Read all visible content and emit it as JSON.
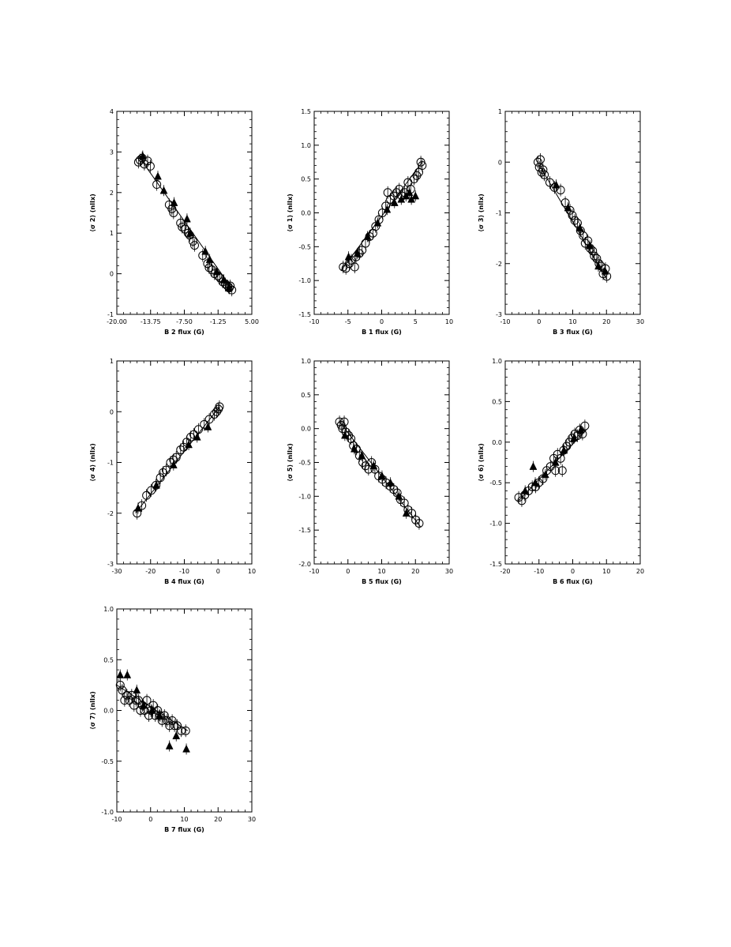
{
  "chart_data": [
    {
      "type": "scatter",
      "xlabel": "B 2 flux (G)",
      "ylabel": "⟨σ 2⟩ (nlIx)",
      "xlim": [
        -20.0,
        5.0
      ],
      "ylim": [
        -1,
        4
      ],
      "xticks": [
        -20.0,
        -13.75,
        -7.5,
        -1.25,
        5.0
      ],
      "xtick_labels": [
        "-20.00",
        "-13.75",
        "-7.50",
        "-1.25",
        "5.00"
      ],
      "yticks": [
        -1,
        0,
        1,
        2,
        3,
        4
      ],
      "ytick_labels": [
        "-1",
        "0",
        "1",
        "2",
        "3",
        "4"
      ],
      "fit_line": {
        "x": [
          -16.0,
          1.5
        ],
        "y": [
          2.9,
          -0.4
        ]
      },
      "series": [
        {
          "marker": "circle",
          "x": [
            -16,
            -15.7,
            -15.3,
            -14.9,
            -14.3,
            -13.8,
            -12.6,
            -10.3,
            -9.8,
            -9.5,
            -8.2,
            -7.9,
            -7.4,
            -6.8,
            -6.5,
            -5.9,
            -5.6,
            -4.1,
            -3.2,
            -2.9,
            -2.4,
            -1.9,
            -1.3,
            -0.9,
            -0.4,
            0.1,
            0.5,
            0.8,
            1.0,
            1.3
          ],
          "y": [
            2.75,
            2.8,
            2.85,
            2.7,
            2.78,
            2.65,
            2.2,
            1.7,
            1.6,
            1.5,
            1.25,
            1.15,
            1.1,
            1.0,
            0.95,
            0.8,
            0.7,
            0.45,
            0.25,
            0.15,
            0.1,
            0.0,
            -0.05,
            -0.1,
            -0.2,
            -0.25,
            -0.3,
            -0.35,
            -0.3,
            -0.4
          ]
        },
        {
          "marker": "triangle",
          "x": [
            -15.2,
            -12.4,
            -11.3,
            -9.4,
            -7.0,
            -6.4,
            -3.6,
            -2.8,
            -1.5,
            -0.2,
            0.7
          ],
          "y": [
            2.9,
            2.4,
            2.05,
            1.75,
            1.35,
            1.0,
            0.55,
            0.35,
            0.05,
            -0.15,
            -0.35
          ]
        }
      ]
    },
    {
      "type": "scatter",
      "xlabel": "B 1 flux (G)",
      "ylabel": "⟨σ 1⟩ (nlIx)",
      "xlim": [
        -10,
        10
      ],
      "ylim": [
        -1.5,
        1.5
      ],
      "xticks": [
        -10,
        -5,
        0,
        5,
        10
      ],
      "xtick_labels": [
        "-10",
        "-5",
        "0",
        "5",
        "10"
      ],
      "yticks": [
        -1.5,
        -1.0,
        -0.5,
        0.0,
        0.5,
        1.0,
        1.5
      ],
      "ytick_labels": [
        "-1.5",
        "-1.0",
        "-0.5",
        "0.0",
        "0.5",
        "1.0",
        "1.5"
      ],
      "fit_line": {
        "x": [
          -6.0,
          6.0
        ],
        "y": [
          -0.85,
          0.75
        ]
      },
      "series": [
        {
          "marker": "circle",
          "x": [
            -5.7,
            -5.3,
            -4.8,
            -4.5,
            -4.0,
            -3.8,
            -3.3,
            -2.9,
            -2.4,
            -1.8,
            -1.3,
            -0.9,
            -0.4,
            0.1,
            0.6,
            0.9,
            1.3,
            1.8,
            2.2,
            2.6,
            3.0,
            3.4,
            3.9,
            4.3,
            4.8,
            5.2,
            5.5,
            5.8,
            6.0
          ],
          "y": [
            -0.8,
            -0.82,
            -0.75,
            -0.7,
            -0.8,
            -0.65,
            -0.6,
            -0.55,
            -0.45,
            -0.35,
            -0.3,
            -0.2,
            -0.1,
            0.0,
            0.1,
            0.3,
            0.2,
            0.25,
            0.3,
            0.35,
            0.25,
            0.3,
            0.45,
            0.35,
            0.5,
            0.55,
            0.6,
            0.75,
            0.7
          ]
        },
        {
          "marker": "triangle",
          "x": [
            -4.9,
            -3.6,
            -2.1,
            -0.6,
            0.8,
            1.9,
            2.9,
            3.6,
            4.4,
            5.0,
            4.1
          ],
          "y": [
            -0.65,
            -0.6,
            -0.35,
            -0.15,
            0.05,
            0.15,
            0.2,
            0.25,
            0.2,
            0.25,
            0.3
          ]
        }
      ]
    },
    {
      "type": "scatter",
      "xlabel": "B 3 flux (G)",
      "ylabel": "⟨σ 3⟩ (nlIx)",
      "xlim": [
        -10,
        30
      ],
      "ylim": [
        -3,
        1
      ],
      "xticks": [
        -10,
        0,
        10,
        20,
        30
      ],
      "xtick_labels": [
        "-10",
        "0",
        "10",
        "20",
        "30"
      ],
      "yticks": [
        -3,
        -2,
        -1,
        0,
        1
      ],
      "ytick_labels": [
        "-3",
        "-2",
        "-1",
        "0",
        "1"
      ],
      "fit_line": {
        "x": [
          0.0,
          20.0
        ],
        "y": [
          -0.05,
          -2.3
        ]
      },
      "series": [
        {
          "marker": "circle",
          "x": [
            -0.3,
            0.1,
            0.4,
            0.8,
            1.2,
            1.6,
            3.2,
            4.6,
            6.4,
            7.8,
            9.2,
            9.9,
            10.6,
            11.4,
            12.3,
            13.1,
            13.7,
            14.5,
            15.2,
            15.9,
            16.4,
            17.1,
            17.8,
            18.4,
            19.0,
            19.7,
            20.1
          ],
          "y": [
            0.0,
            -0.1,
            0.05,
            -0.2,
            -0.15,
            -0.25,
            -0.4,
            -0.5,
            -0.55,
            -0.8,
            -0.95,
            -1.05,
            -1.15,
            -1.2,
            -1.35,
            -1.45,
            -1.6,
            -1.55,
            -1.7,
            -1.75,
            -1.85,
            -1.9,
            -2.0,
            -2.05,
            -2.2,
            -2.1,
            -2.25
          ]
        },
        {
          "marker": "triangle",
          "x": [
            5.1,
            8.6,
            12.1,
            15.1,
            17.6,
            19.6
          ],
          "y": [
            -0.45,
            -0.9,
            -1.3,
            -1.65,
            -2.05,
            -2.15
          ]
        }
      ]
    },
    {
      "type": "scatter",
      "xlabel": "B 4 flux (G)",
      "ylabel": "⟨σ 4⟩ (nlIx)",
      "xlim": [
        -30,
        10
      ],
      "ylim": [
        -3,
        1
      ],
      "xticks": [
        -30,
        -20,
        -10,
        0,
        10
      ],
      "xtick_labels": [
        "-30",
        "-20",
        "-10",
        "0",
        "10"
      ],
      "yticks": [
        -3,
        -2,
        -1,
        0,
        1
      ],
      "ytick_labels": [
        "-3",
        "-2",
        "-1",
        "0",
        "1"
      ],
      "fit_line": {
        "x": [
          -24.5,
          0.5
        ],
        "y": [
          -2.0,
          0.1
        ]
      },
      "series": [
        {
          "marker": "circle",
          "x": [
            -24.0,
            -22.6,
            -21.2,
            -19.8,
            -18.4,
            -17.1,
            -16.3,
            -15.4,
            -14.1,
            -13.2,
            -12.4,
            -11.1,
            -10.2,
            -9.3,
            -8.1,
            -7.2,
            -5.8,
            -4.1,
            -2.6,
            -1.1,
            -0.4,
            0.1,
            0.4
          ],
          "y": [
            -2.0,
            -1.85,
            -1.65,
            -1.55,
            -1.45,
            -1.3,
            -1.2,
            -1.15,
            -1.0,
            -0.95,
            -0.9,
            -0.75,
            -0.7,
            -0.6,
            -0.5,
            -0.45,
            -0.35,
            -0.25,
            -0.15,
            -0.05,
            0.0,
            0.05,
            0.1
          ]
        },
        {
          "marker": "triangle",
          "x": [
            -23.7,
            -18.3,
            -13.2,
            -8.7,
            -6.2,
            -3.0
          ],
          "y": [
            -1.9,
            -1.45,
            -1.05,
            -0.65,
            -0.5,
            -0.3
          ]
        }
      ]
    },
    {
      "type": "scatter",
      "xlabel": "B 5 flux (G)",
      "ylabel": "⟨σ 5⟩ (nlIx)",
      "xlim": [
        -10,
        30
      ],
      "ylim": [
        -2.0,
        1.0
      ],
      "xticks": [
        -10,
        0,
        10,
        20,
        30
      ],
      "xtick_labels": [
        "-10",
        "0",
        "10",
        "20",
        "30"
      ],
      "yticks": [
        -2.0,
        -1.5,
        -1.0,
        -0.5,
        0.0,
        0.5,
        1.0
      ],
      "ytick_labels": [
        "-2.0",
        "-1.5",
        "-1.0",
        "-0.5",
        "0.0",
        "0.5",
        "1.0"
      ],
      "fit_line": {
        "x": [
          -2.5,
          21.5
        ],
        "y": [
          0.1,
          -1.45
        ]
      },
      "series": [
        {
          "marker": "circle",
          "x": [
            -2.5,
            -2.0,
            -1.6,
            -1.1,
            -0.6,
            0.2,
            0.9,
            1.6,
            2.5,
            3.4,
            4.4,
            5.2,
            6.1,
            7.0,
            8.0,
            9.1,
            10.2,
            11.3,
            12.5,
            13.6,
            14.6,
            15.6,
            16.7,
            17.8,
            18.9,
            20.1,
            21.1
          ],
          "y": [
            0.1,
            0.05,
            0.0,
            0.1,
            -0.05,
            -0.1,
            -0.15,
            -0.25,
            -0.3,
            -0.4,
            -0.5,
            -0.55,
            -0.6,
            -0.5,
            -0.6,
            -0.7,
            -0.75,
            -0.8,
            -0.85,
            -0.9,
            -0.95,
            -1.05,
            -1.1,
            -1.2,
            -1.25,
            -1.35,
            -1.4
          ]
        },
        {
          "marker": "triangle",
          "x": [
            -0.9,
            1.9,
            4.1,
            7.6,
            10.1,
            12.6,
            15.1,
            17.3
          ],
          "y": [
            -0.1,
            -0.3,
            -0.4,
            -0.55,
            -0.7,
            -0.8,
            -1.0,
            -1.25
          ]
        }
      ]
    },
    {
      "type": "scatter",
      "xlabel": "B 6 flux (G)",
      "ylabel": "⟨σ 6⟩ (nlIx)",
      "xlim": [
        -20,
        20
      ],
      "ylim": [
        -1.5,
        1.0
      ],
      "xticks": [
        -20,
        -10,
        0,
        10,
        20
      ],
      "xtick_labels": [
        "-20",
        "-10",
        "0",
        "10",
        "20"
      ],
      "yticks": [
        -1.5,
        -1.0,
        -0.5,
        0.0,
        0.5,
        1.0
      ],
      "ytick_labels": [
        "-1.5",
        "-1.0",
        "-0.5",
        "0.0",
        "0.5",
        "1.0"
      ],
      "fit_line": {
        "x": [
          -16.0,
          4.0
        ],
        "y": [
          -0.72,
          0.15
        ]
      },
      "series": [
        {
          "marker": "circle",
          "x": [
            -16.0,
            -15.1,
            -14.2,
            -13.1,
            -12.0,
            -11.0,
            -10.1,
            -8.8,
            -7.7,
            -6.6,
            -5.6,
            -4.5,
            -3.6,
            -2.7,
            -1.8,
            -1.0,
            -0.2,
            0.6,
            1.4,
            2.1,
            2.9,
            3.6,
            -3.1,
            -5.1
          ],
          "y": [
            -0.68,
            -0.72,
            -0.65,
            -0.6,
            -0.55,
            -0.55,
            -0.5,
            -0.45,
            -0.35,
            -0.3,
            -0.2,
            -0.15,
            -0.2,
            -0.1,
            -0.05,
            0.0,
            0.05,
            0.1,
            0.08,
            0.15,
            0.1,
            0.2,
            -0.35,
            -0.35
          ]
        },
        {
          "marker": "triangle",
          "x": [
            -14.1,
            -11.1,
            -8.1,
            -11.7,
            -5.1,
            -2.6,
            0.4,
            2.4
          ],
          "y": [
            -0.6,
            -0.5,
            -0.4,
            -0.3,
            -0.25,
            -0.1,
            0.05,
            0.15
          ]
        }
      ]
    },
    {
      "type": "scatter",
      "xlabel": "B 7 flux (G)",
      "ylabel": "⟨σ 7⟩ (nlIx)",
      "xlim": [
        -10,
        30
      ],
      "ylim": [
        -1.0,
        1.0
      ],
      "xticks": [
        -10,
        0,
        10,
        20,
        30
      ],
      "xtick_labels": [
        "-10",
        "0",
        "10",
        "20",
        "30"
      ],
      "yticks": [
        -1.0,
        -0.5,
        0.0,
        0.5,
        1.0
      ],
      "ytick_labels": [
        "-1.0",
        "-0.5",
        "0.0",
        "0.5",
        "1.0"
      ],
      "fit_line": {
        "x": [
          -10.0,
          11.0
        ],
        "y": [
          0.25,
          -0.2
        ]
      },
      "series": [
        {
          "marker": "circle",
          "x": [
            -9.0,
            -8.4,
            -7.7,
            -7.0,
            -6.3,
            -5.6,
            -4.9,
            -4.3,
            -3.6,
            -3.0,
            -2.4,
            -1.8,
            -1.1,
            -0.5,
            0.1,
            0.8,
            1.4,
            2.1,
            2.8,
            3.4,
            4.1,
            4.9,
            5.6,
            6.4,
            7.1,
            7.9,
            9.1,
            10.4
          ],
          "y": [
            0.25,
            0.2,
            0.1,
            0.15,
            0.1,
            0.15,
            0.05,
            0.1,
            0.1,
            0.0,
            0.05,
            0.0,
            0.1,
            -0.05,
            0.0,
            0.05,
            -0.05,
            0.0,
            -0.05,
            -0.1,
            -0.05,
            -0.1,
            -0.15,
            -0.1,
            -0.15,
            -0.15,
            -0.2,
            -0.2
          ]
        },
        {
          "marker": "triangle",
          "x": [
            -9.0,
            -6.9,
            -4.1,
            -2.1,
            0.4,
            2.6,
            5.6,
            7.6,
            10.6
          ],
          "y": [
            0.35,
            0.35,
            0.2,
            0.05,
            0.0,
            -0.05,
            -0.35,
            -0.25,
            -0.38
          ]
        }
      ]
    }
  ]
}
